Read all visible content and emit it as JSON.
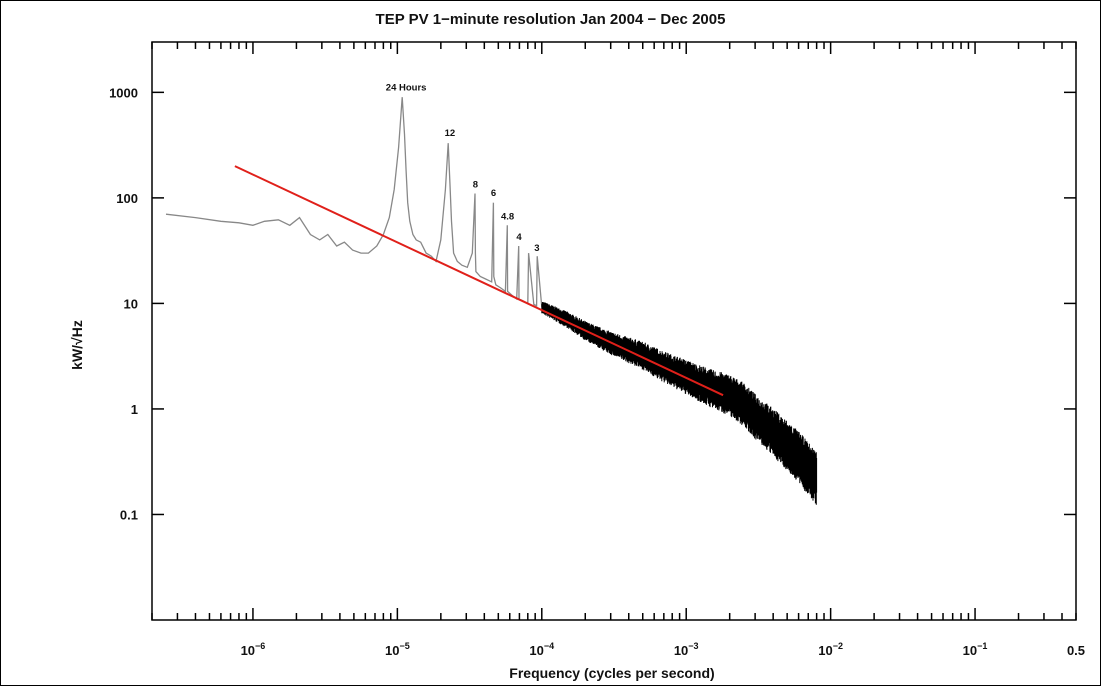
{
  "chart_data": {
    "type": "line",
    "title": "TEP PV 1−minute resolution Jan 2004 − Dec 2005",
    "xlabel": "Frequency (cycles per second)",
    "ylabel": "kW/√Hz",
    "x_scale": "log",
    "y_scale": "log",
    "xlim": [
      2e-07,
      0.5
    ],
    "ylim": [
      0.01,
      3000
    ],
    "x_ticks": [
      {
        "value": 1e-06,
        "base": "10",
        "exp": "−6"
      },
      {
        "value": 1e-05,
        "base": "10",
        "exp": "−5"
      },
      {
        "value": 0.0001,
        "base": "10",
        "exp": "−4"
      },
      {
        "value": 0.001,
        "base": "10",
        "exp": "−3"
      },
      {
        "value": 0.01,
        "base": "10",
        "exp": "−2"
      },
      {
        "value": 0.1,
        "base": "10",
        "exp": "−1"
      },
      {
        "value": 0.5,
        "base": "0.5",
        "exp": ""
      }
    ],
    "y_ticks": [
      {
        "value": 1000,
        "label": "1000"
      },
      {
        "value": 100,
        "label": "100"
      },
      {
        "value": 10,
        "label": "10"
      },
      {
        "value": 1,
        "label": "1"
      },
      {
        "value": 0.1,
        "label": "0.1"
      }
    ],
    "grid": false,
    "series": [
      {
        "color": "#000000",
        "low_freq_color": "#888888",
        "x": [
          2.5e-07,
          4e-07,
          6e-07,
          8e-07,
          1e-06,
          1.2e-06,
          1.5e-06,
          1.8e-06,
          2.1e-06,
          2.5e-06,
          2.9e-06,
          3.3e-06,
          3.8e-06,
          4.3e-06,
          4.9e-06,
          5.6e-06,
          6.3e-06,
          7.2e-06,
          8e-06,
          8.8e-06,
          9.5e-06,
          1.02e-05,
          1.08e-05,
          1.12e-05,
          1.15e-05,
          1.18e-05,
          1.22e-05,
          1.28e-05,
          1.35e-05,
          1.45e-05,
          1.58e-05,
          1.72e-05,
          1.85e-05,
          2e-05,
          2.15e-05,
          2.25e-05,
          2.31e-05,
          2.37e-05,
          2.45e-05,
          2.6e-05,
          2.8e-05,
          3.05e-05,
          3.3e-05,
          3.45e-05,
          3.47e-05,
          3.5e-05,
          3.75e-05,
          4.1e-05,
          4.5e-05,
          4.62e-05,
          4.65e-05,
          4.8e-05,
          5.2e-05,
          5.6e-05,
          5.77e-05,
          5.8e-05,
          6.2e-05,
          6.7e-05,
          6.92e-05,
          6.95e-05,
          7.5e-05,
          8e-05,
          8.1e-05,
          8.8e-05,
          9.2e-05,
          9.3e-05,
          0.0001,
          0.00015,
          0.0002,
          0.0003,
          0.0005,
          0.0007,
          0.001,
          0.0015,
          0.002,
          0.0025,
          0.003,
          0.004,
          0.005,
          0.006,
          0.007,
          0.008
        ],
        "y": [
          70,
          65,
          60,
          58,
          55,
          60,
          62,
          55,
          65,
          45,
          40,
          45,
          35,
          38,
          32,
          30,
          30,
          35,
          45,
          65,
          120,
          300,
          900,
          400,
          180,
          90,
          60,
          45,
          40,
          38,
          30,
          28,
          25,
          40,
          120,
          330,
          140,
          60,
          30,
          25,
          23,
          22,
          30,
          110,
          30,
          20,
          18,
          17,
          16,
          90,
          18,
          15,
          14,
          13,
          55,
          13,
          12,
          11,
          35,
          11,
          10.5,
          10,
          30,
          9.8,
          9.5,
          28,
          9.2,
          7,
          5.5,
          4.2,
          3.2,
          2.5,
          2.0,
          1.55,
          1.35,
          1.1,
          0.85,
          0.6,
          0.45,
          0.35,
          0.27,
          0.22
        ]
      },
      {
        "color": "#e0201a",
        "x": [
          7.5e-07,
          0.0018
        ],
        "y": [
          200,
          1.35
        ]
      }
    ],
    "annotations": [
      {
        "text": "24 Hours",
        "x": 1.15e-05,
        "y": 1000
      },
      {
        "text": "12",
        "x": 2.31e-05,
        "y": 370
      },
      {
        "text": "8",
        "x": 3.47e-05,
        "y": 120
      },
      {
        "text": "6",
        "x": 4.63e-05,
        "y": 100
      },
      {
        "text": "4.8",
        "x": 5.8e-05,
        "y": 60
      },
      {
        "text": "4",
        "x": 6.95e-05,
        "y": 38
      },
      {
        "text": "3",
        "x": 9.25e-05,
        "y": 30
      }
    ],
    "legend": "none"
  }
}
